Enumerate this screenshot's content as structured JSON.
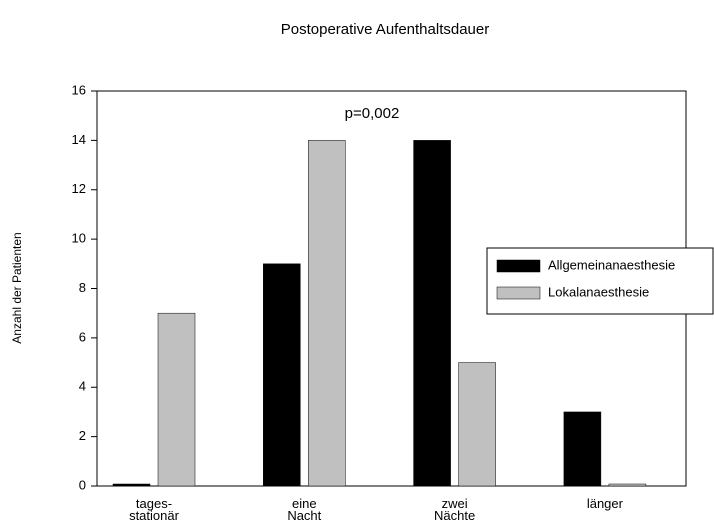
{
  "chart_data": {
    "type": "bar",
    "title": "Postoperative Aufenthaltsdauer",
    "y_label": "Anzahl der Patienten",
    "annotation": "p=0,002",
    "categories": [
      "tages-\nstationär",
      "eine\nNacht",
      "zwei\nNächte",
      "länger"
    ],
    "series": [
      {
        "name": "Allgemeinanaesthesie",
        "color": "#000000",
        "values": [
          0,
          9,
          14,
          3
        ]
      },
      {
        "name": "Lokalanaesthesie",
        "color": "#c0c0c0",
        "values": [
          7,
          14,
          5,
          0
        ]
      }
    ],
    "ylim": [
      0,
      16
    ],
    "yticks": [
      0,
      2,
      4,
      6,
      8,
      10,
      12,
      14,
      16
    ],
    "legend": "right"
  }
}
